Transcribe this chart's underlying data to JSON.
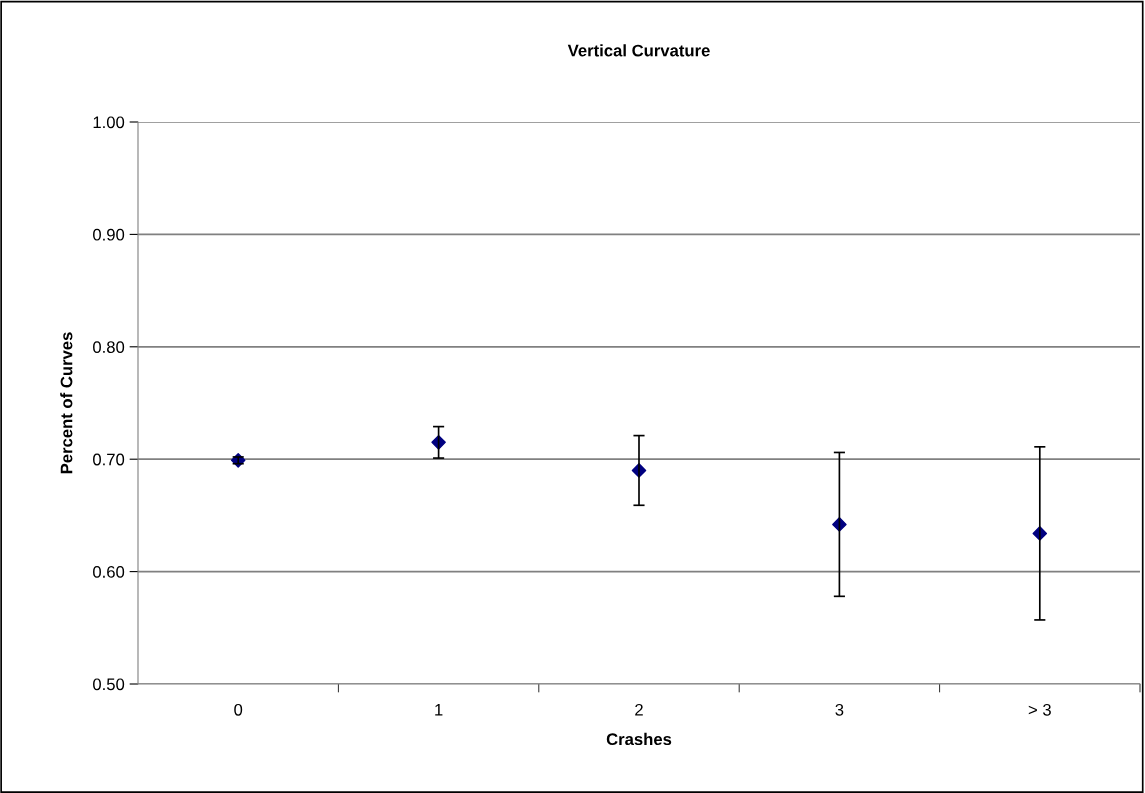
{
  "chart_data": {
    "type": "scatter",
    "title": "Vertical Curvature",
    "xlabel": "Crashes",
    "ylabel": "Percent of Curves",
    "categories": [
      "0",
      "1",
      "2",
      "3",
      "> 3"
    ],
    "series": [
      {
        "color": "#000080",
        "values": [
          0.699,
          0.715,
          0.69,
          0.642,
          0.634
        ],
        "errors": [
          0.003,
          0.014,
          0.031,
          0.064,
          0.077
        ]
      }
    ],
    "ylim": [
      0.5,
      1.0
    ],
    "yticks": [
      {
        "value": 0.5,
        "label": "0.50"
      },
      {
        "value": 0.6,
        "label": "0.60"
      },
      {
        "value": 0.7,
        "label": "0.70"
      },
      {
        "value": 0.8,
        "label": "0.80"
      },
      {
        "value": 0.9,
        "label": "0.90"
      },
      {
        "value": 1.0,
        "label": "1.00"
      }
    ],
    "grid": "y",
    "marker": "diamond",
    "legend": false
  }
}
